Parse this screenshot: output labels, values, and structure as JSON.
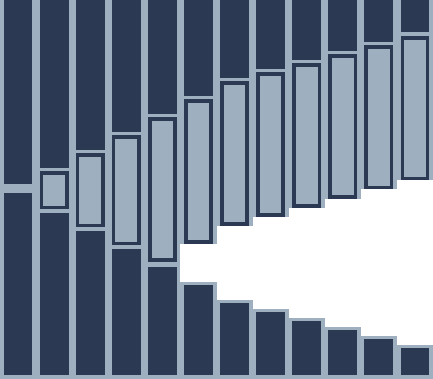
{
  "colors": {
    "dark": "#2b3a52",
    "light": "#9eb0c0",
    "background": "#ffffff"
  }
}
